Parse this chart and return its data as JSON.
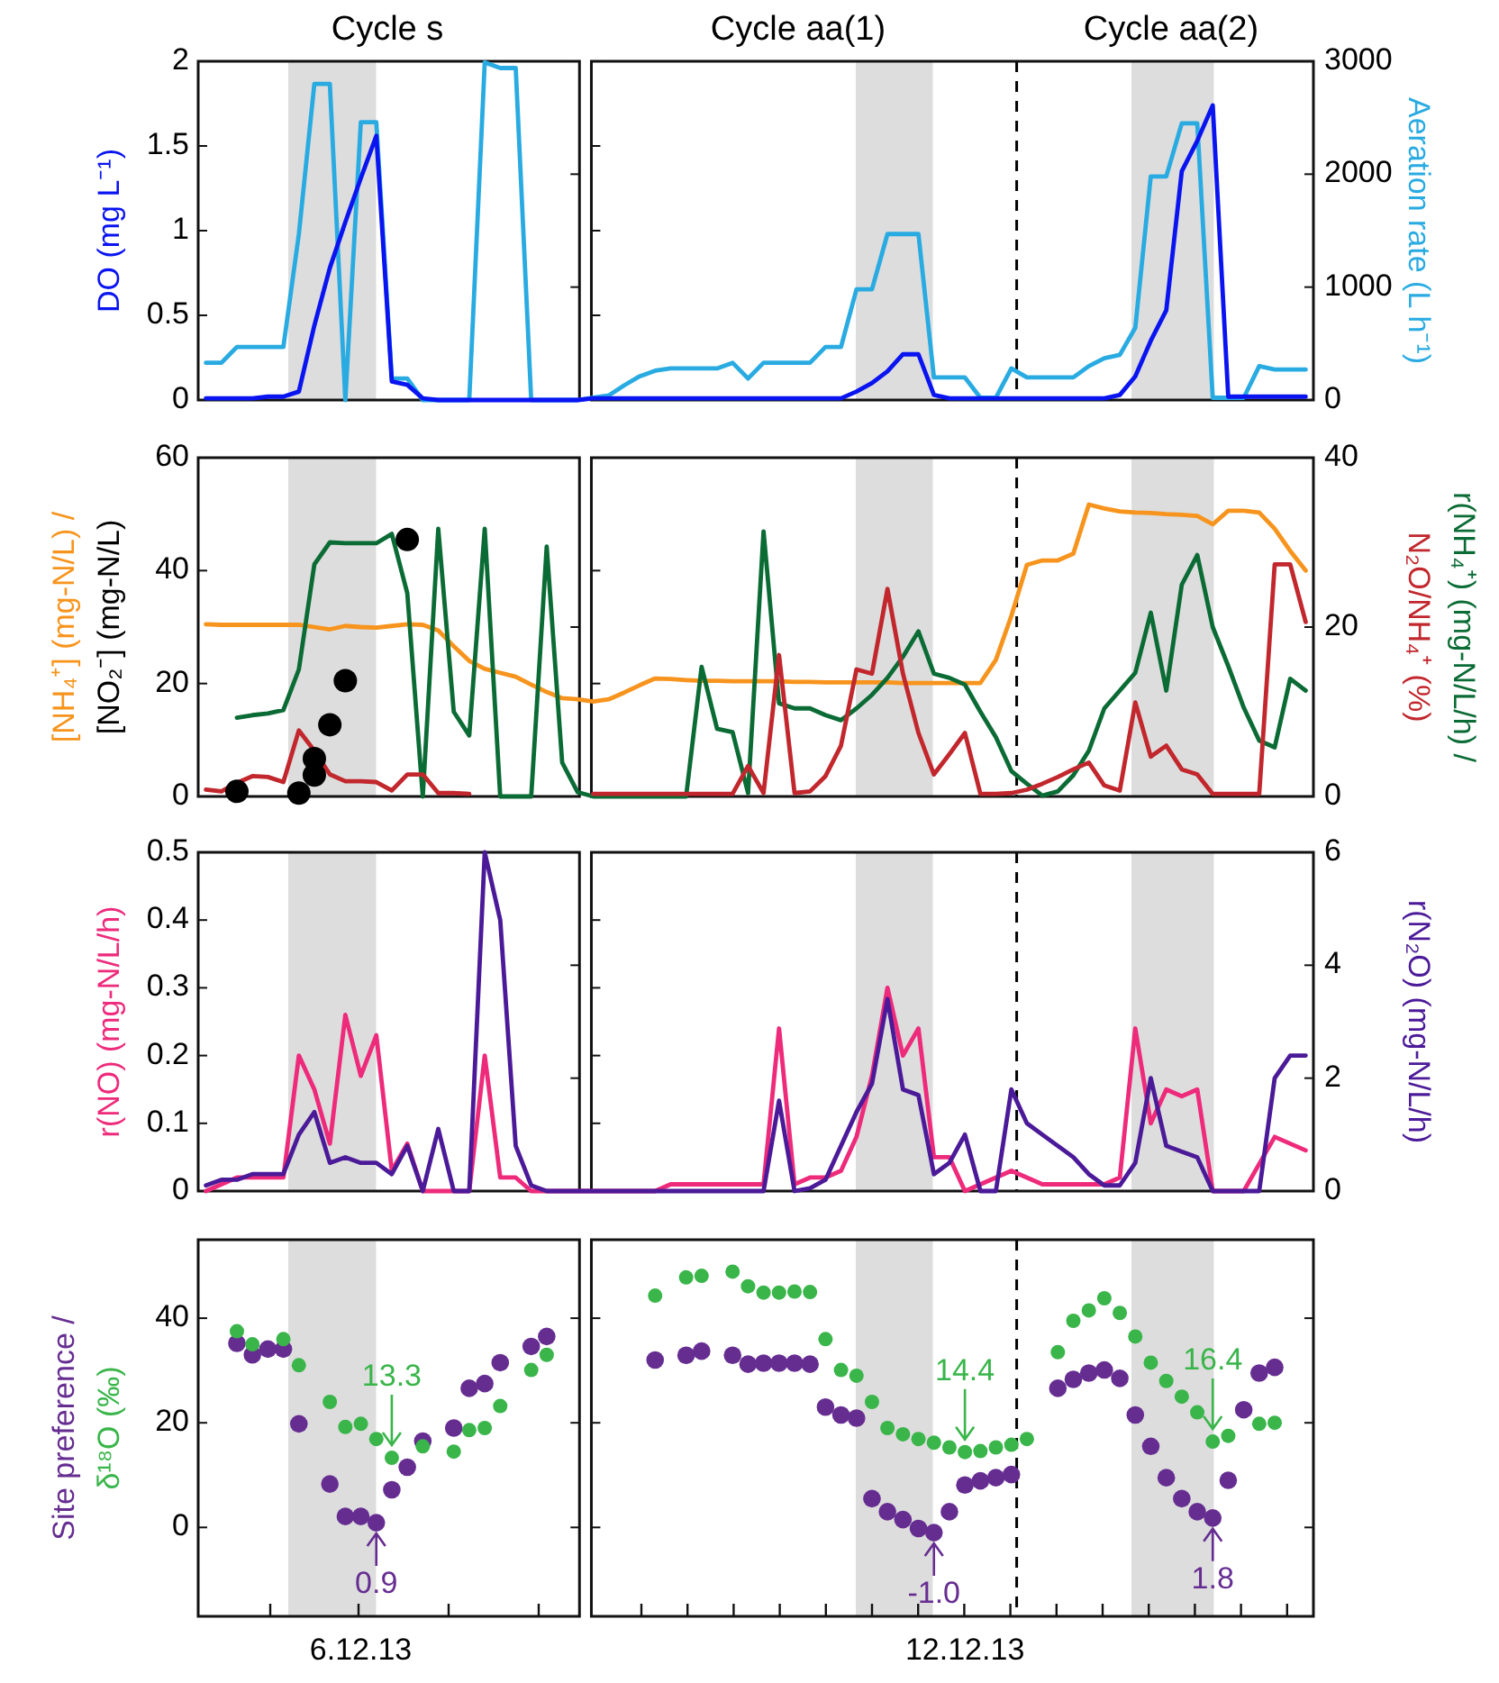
{
  "chart_data": [
    {
      "type": "line",
      "annotations": [
        "Cycle s",
        "Cycle aa(1)",
        "Cycle aa(2)"
      ],
      "ylabel": "DO (mg L⁻¹)",
      "y2label": "Aeration rate (L h⁻¹)",
      "categories": [
        null,
        null,
        null,
        null,
        null,
        null,
        null,
        null,
        null,
        null,
        null,
        null,
        null,
        null,
        null,
        null,
        null,
        null,
        null,
        null,
        null,
        null,
        null,
        null,
        null,
        null,
        null,
        null,
        null,
        null,
        null,
        null,
        null,
        null,
        null,
        null,
        null,
        null,
        null,
        null,
        null,
        null,
        null,
        null,
        null,
        null,
        null,
        null,
        null,
        null,
        null,
        null,
        null,
        null,
        null,
        null,
        null,
        null,
        null,
        null,
        null,
        null,
        null,
        null,
        null,
        null,
        null,
        null,
        null,
        null,
        null,
        null
      ],
      "ylim": [
        0,
        2
      ],
      "yticks": [
        0,
        0.5,
        1,
        1.5,
        2
      ],
      "y2lim": [
        0,
        3000
      ],
      "y2ticks": [
        0,
        1000,
        2000,
        3000
      ],
      "series": [
        {
          "color": "#29abe2",
          "axis": "y2",
          "values": [
            330,
            330,
            470,
            470,
            470,
            470,
            1470,
            2800,
            2800,
            0,
            2460,
            2460,
            190,
            190,
            0,
            0,
            0,
            0,
            2990,
            2940,
            2940,
            0,
            0,
            0,
            0,
            20,
            40,
            130,
            210,
            260,
            280,
            280,
            280,
            280,
            330,
            190,
            330,
            330,
            330,
            330,
            470,
            470,
            980,
            980,
            1470,
            1470,
            1470,
            200,
            200,
            200,
            20,
            20,
            280,
            200,
            200,
            200,
            200,
            300,
            370,
            400,
            640,
            1980,
            1980,
            2450,
            2450,
            20,
            20,
            20,
            300,
            270,
            270,
            270
          ]
        },
        {
          "color": "#0a14f0",
          "values": [
            0.01,
            0.01,
            0.01,
            0.01,
            0.02,
            0.02,
            0.05,
            0.44,
            0.78,
            1.05,
            1.31,
            1.56,
            0.11,
            0.09,
            0.01,
            0,
            0,
            0,
            0,
            0,
            0,
            0,
            0,
            0,
            0,
            0.01,
            0.01,
            0.01,
            0.01,
            0.01,
            0.01,
            0.01,
            0.01,
            0.01,
            0.01,
            0.01,
            0.01,
            0.01,
            0.01,
            0.01,
            0.01,
            0.01,
            0.05,
            0.1,
            0.17,
            0.27,
            0.27,
            0.03,
            0.01,
            0.01,
            0.01,
            0.01,
            0.01,
            0.01,
            0.01,
            0.01,
            0.01,
            0.01,
            0.01,
            0.03,
            0.14,
            0.35,
            0.53,
            1.35,
            1.53,
            1.74,
            0.02,
            0.02,
            0.02,
            0.02,
            0.02,
            0.02
          ]
        }
      ]
    },
    {
      "type": "line",
      "ylabel": "[NH₄⁺] (mg-N/L) / [NO₂⁻] (mg-N/L)",
      "y2label": "r(NH₄⁺) (mg-N/L/h) / N₂O/NH₄⁺ (%)",
      "categories": [
        null,
        null,
        null,
        null,
        null,
        null,
        null,
        null,
        null,
        null,
        null,
        null,
        null,
        null,
        null,
        null,
        null,
        null,
        null,
        null,
        null,
        null,
        null,
        null,
        null,
        null,
        null,
        null,
        null,
        null,
        null,
        null,
        null,
        null,
        null,
        null,
        null,
        null,
        null,
        null,
        null,
        null,
        null,
        null,
        null,
        null,
        null,
        null,
        null,
        null,
        null,
        null,
        null,
        null,
        null,
        null,
        null,
        null,
        null,
        null,
        null,
        null,
        null,
        null,
        null,
        null,
        null,
        null,
        null,
        null,
        null,
        null
      ],
      "ylim": [
        0,
        60
      ],
      "yticks": [
        0,
        20,
        40,
        60
      ],
      "y2lim": [
        0,
        40
      ],
      "y2ticks": [
        0,
        20,
        40
      ],
      "series": [
        {
          "color": "#f7941d",
          "values": [
            30.5,
            30.4,
            30.4,
            30.4,
            30.4,
            30.4,
            30.4,
            30.0,
            29.6,
            30.2,
            30.0,
            29.9,
            30.2,
            30.5,
            30.4,
            29.4,
            26.6,
            24.0,
            22.6,
            21.9,
            21.2,
            19.8,
            18.5,
            17.4,
            17.2,
            16.8,
            17.2,
            18.4,
            19.7,
            20.9,
            20.8,
            20.6,
            20.5,
            20.5,
            20.4,
            20.4,
            20.4,
            20.4,
            20.3,
            20.3,
            20.2,
            20.2,
            20.2,
            20.2,
            20.2,
            20.1,
            20.1,
            20.1,
            20.1,
            20.1,
            20.1,
            24.2,
            32.0,
            41.0,
            41.8,
            41.8,
            43.0,
            51.7,
            51.0,
            50.5,
            50.3,
            50.2,
            50.0,
            49.9,
            49.7,
            48.2,
            50.6,
            50.6,
            50.3,
            47.4,
            43.5,
            40.0
          ]
        },
        {
          "color": "#0b6b35",
          "axis": "y2",
          "values": [
            null,
            null,
            9.3,
            9.6,
            9.8,
            10.2,
            15.0,
            27.4,
            30.0,
            29.9,
            29.9,
            29.9,
            31.0,
            24.0,
            0,
            31.6,
            10.0,
            7.2,
            31.6,
            0,
            0,
            0,
            29.5,
            4.0,
            0.5,
            0,
            0,
            0,
            0,
            0,
            0,
            0,
            15.3,
            8.0,
            7.6,
            0.4,
            31.3,
            11.0,
            10.4,
            10.4,
            9.6,
            9.0,
            10.4,
            12.0,
            14.0,
            16.5,
            19.5,
            14.5,
            14.0,
            13.2,
            10.0,
            7.0,
            3.0,
            1.5,
            0.1,
            0.6,
            2.5,
            5.4,
            10.4,
            12.5,
            14.6,
            21.7,
            12.5,
            25.0,
            28.5,
            20.0,
            15.4,
            10.5,
            6.6,
            5.8,
            13.9,
            12.5
          ]
        },
        {
          "color": "#c1272d",
          "axis": "y2",
          "values": [
            0.8,
            0.6,
            1.6,
            2.4,
            2.3,
            1.7,
            7.8,
            5.4,
            2.6,
            1.8,
            1.8,
            1.7,
            0.7,
            2.6,
            2.6,
            0.4,
            0.4,
            0.3,
            null,
            null,
            null,
            null,
            null,
            null,
            null,
            0.3,
            0.3,
            0.3,
            0.3,
            0.3,
            0.3,
            0.3,
            0.3,
            0.3,
            0.3,
            3.6,
            0.4,
            16.7,
            0.4,
            0.6,
            2.4,
            6.0,
            15.0,
            14.5,
            24.5,
            14.5,
            7.5,
            2.6,
            5.0,
            7.5,
            0.3,
            0.3,
            0.4,
            0.8,
            1.5,
            2.3,
            3.2,
            4.0,
            1.3,
            0.7,
            11.1,
            4.7,
            6.0,
            3.2,
            2.6,
            0.3,
            0.3,
            0.3,
            0.3,
            27.4,
            27.4,
            20.6
          ]
        },
        {
          "type": "scatter",
          "marker": "circle",
          "color": "#000000",
          "values": [
            null,
            null,
            0.9,
            null,
            null,
            null,
            0.6,
            3.8,
            12.7,
            20.5,
            null,
            null,
            null,
            45.5,
            null,
            null,
            null,
            null,
            null,
            null,
            null,
            null,
            null,
            null,
            null,
            null,
            null,
            null,
            null,
            null,
            null,
            null,
            null,
            null,
            null,
            null,
            null,
            null,
            null,
            null,
            null,
            null,
            null,
            null,
            null,
            null,
            null,
            null,
            null,
            null,
            null,
            null,
            null,
            null,
            null,
            null,
            null,
            null,
            null,
            null,
            null,
            null,
            null,
            null,
            null,
            null,
            null,
            null,
            null,
            null,
            null,
            null
          ]
        },
        {
          "type": "scatter",
          "marker": "circle",
          "color": "#000000",
          "values": [
            null,
            null,
            null,
            null,
            null,
            null,
            null,
            6.7,
            null,
            null,
            null,
            null,
            null,
            null,
            null,
            null,
            null,
            null,
            null,
            null,
            null,
            null,
            null,
            null,
            null,
            null,
            null,
            null,
            null,
            null,
            null,
            null,
            null,
            null,
            null,
            null,
            null,
            null,
            null,
            null,
            null,
            null,
            null,
            null,
            null,
            null,
            null,
            null,
            null,
            null,
            null,
            null,
            null,
            null,
            null,
            null,
            null,
            null,
            null,
            null,
            null,
            null,
            null,
            null,
            null,
            null,
            null,
            null,
            null,
            null,
            null,
            null
          ]
        }
      ]
    },
    {
      "type": "line",
      "ylabel": "r(NO) (mg-N/L/h)",
      "y2label": "r(N₂O) (mg-N/L/h)",
      "categories": [
        null,
        null,
        null,
        null,
        null,
        null,
        null,
        null,
        null,
        null,
        null,
        null,
        null,
        null,
        null,
        null,
        null,
        null,
        null,
        null,
        null,
        null,
        null,
        null,
        null,
        null,
        null,
        null,
        null,
        null,
        null,
        null,
        null,
        null,
        null,
        null,
        null,
        null,
        null,
        null,
        null,
        null,
        null,
        null,
        null,
        null,
        null,
        null,
        null,
        null,
        null,
        null,
        null,
        null,
        null,
        null,
        null,
        null,
        null,
        null,
        null,
        null,
        null,
        null,
        null,
        null,
        null,
        null,
        null,
        null,
        null,
        null
      ],
      "ylim": [
        0,
        0.5
      ],
      "yticks": [
        0,
        0.1,
        0.2,
        0.3,
        0.4,
        0.5
      ],
      "y2lim": [
        0,
        6
      ],
      "y2ticks": [
        0,
        2,
        4,
        6
      ],
      "series": [
        {
          "color": "#ee2a7b",
          "values": [
            0,
            0.01,
            0.02,
            0.02,
            0.02,
            0.02,
            0.2,
            0.15,
            0.07,
            0.26,
            0.17,
            0.23,
            0.03,
            0.07,
            0,
            0,
            0,
            0,
            0.2,
            0.02,
            0.02,
            0,
            0,
            0,
            0,
            0,
            0,
            0,
            0,
            0,
            0.01,
            0.01,
            0.01,
            0.01,
            0.01,
            0.01,
            0.01,
            0.24,
            0.01,
            0.02,
            0.02,
            0.03,
            0.08,
            0.17,
            0.3,
            0.2,
            0.24,
            0.05,
            0.05,
            0,
            0.01,
            0.02,
            0.03,
            0.02,
            0.01,
            0.01,
            0.01,
            0.01,
            0.01,
            0.02,
            0.24,
            0.1,
            0.15,
            0.14,
            0.15,
            0,
            0,
            0,
            0.04,
            0.08,
            0.07,
            0.06
          ]
        },
        {
          "color": "#4b1a98",
          "axis": "y2",
          "values": [
            0.1,
            0.2,
            0.2,
            0.3,
            0.3,
            0.3,
            1.0,
            1.4,
            0.5,
            0.6,
            0.5,
            0.5,
            0.3,
            0.8,
            0,
            1.1,
            0,
            0,
            6,
            4.8,
            0.8,
            0.1,
            0,
            0,
            0,
            0,
            0,
            0,
            0,
            0,
            0,
            0,
            0,
            0,
            0,
            0,
            0,
            1.6,
            0,
            0.05,
            0.2,
            0.8,
            1.4,
            1.9,
            3.4,
            1.8,
            1.7,
            0.3,
            0.5,
            1.0,
            0,
            0,
            1.8,
            1.2,
            1.0,
            0.8,
            0.6,
            0.3,
            0.1,
            0.1,
            0.5,
            2.0,
            0.8,
            0.7,
            0.6,
            0,
            0,
            0,
            0,
            2.0,
            2.4,
            2.4
          ]
        }
      ]
    },
    {
      "type": "scatter",
      "marker": "circle",
      "ylabel": "Site preference / δ¹⁸O (‰)",
      "categories": [
        null,
        null,
        null,
        null,
        null,
        null,
        null,
        null,
        null,
        null,
        "6.12.13",
        null,
        null,
        null,
        null,
        null,
        null,
        null,
        null,
        null,
        null,
        null,
        null,
        null,
        null,
        null,
        null,
        null,
        null,
        null,
        null,
        null,
        null,
        null,
        null,
        null,
        null,
        null,
        null,
        null,
        null,
        null,
        null,
        null,
        null,
        null,
        null,
        null,
        null,
        "12.12.13",
        null,
        null,
        null,
        null,
        null,
        null,
        null,
        null,
        null,
        null,
        null,
        null,
        null,
        null,
        null,
        null,
        null,
        null,
        null,
        null,
        null,
        null
      ],
      "ylim": [
        -17,
        55
      ],
      "yticks": [
        0,
        20,
        40
      ],
      "annotations": [
        {
          "text": "13.3",
          "y": 13.3
        },
        {
          "text": "0.9",
          "y": 0.9
        },
        {
          "text": "14.4",
          "y": 14.4
        },
        {
          "text": "-1.0",
          "y": -1.0
        },
        {
          "text": "16.4",
          "y": 16.4
        },
        {
          "text": "1.8",
          "y": 1.8
        }
      ],
      "series": [
        {
          "color": "#662d91",
          "values": [
            null,
            null,
            35.2,
            33.0,
            34.1,
            34.1,
            19.8,
            null,
            8.3,
            2.1,
            2.1,
            0.9,
            7.2,
            11.5,
            16.5,
            null,
            19.0,
            26.6,
            27.5,
            31.5,
            null,
            34.6,
            36.5,
            null,
            null,
            null,
            null,
            null,
            null,
            32.0,
            null,
            32.9,
            33.7,
            null,
            32.9,
            31.2,
            31.4,
            31.4,
            31.4,
            31.2,
            23.0,
            21.5,
            20.9,
            5.5,
            3.0,
            1.5,
            -0.2,
            -1.0,
            3.0,
            8.1,
            8.9,
            9.5,
            10.1,
            null,
            null,
            26.6,
            28.3,
            29.5,
            30.1,
            28.5,
            21.5,
            15.5,
            9.5,
            5.5,
            3.0,
            1.8,
            9.0,
            22.5,
            29.5,
            30.6,
            null,
            null
          ]
        },
        {
          "color": "#39b54a",
          "values": [
            null,
            null,
            37.5,
            35.0,
            null,
            36.0,
            31.0,
            null,
            24.0,
            19.2,
            19.8,
            16.9,
            13.3,
            null,
            15.5,
            null,
            14.5,
            18.6,
            19.0,
            23.2,
            null,
            30.1,
            33.0,
            null,
            null,
            null,
            null,
            null,
            null,
            44.3,
            null,
            47.8,
            48.1,
            null,
            48.9,
            46.1,
            44.9,
            44.9,
            45.1,
            45.0,
            36.0,
            30.1,
            29.0,
            24.0,
            19.0,
            17.8,
            16.9,
            16.2,
            15.3,
            14.4,
            14.6,
            15.3,
            15.8,
            16.9,
            null,
            33.5,
            39.5,
            41.5,
            43.8,
            41.0,
            36.5,
            31.5,
            28.0,
            25.0,
            22.0,
            16.4,
            17.5,
            null,
            19.8,
            20.0,
            null,
            null
          ]
        }
      ]
    }
  ]
}
